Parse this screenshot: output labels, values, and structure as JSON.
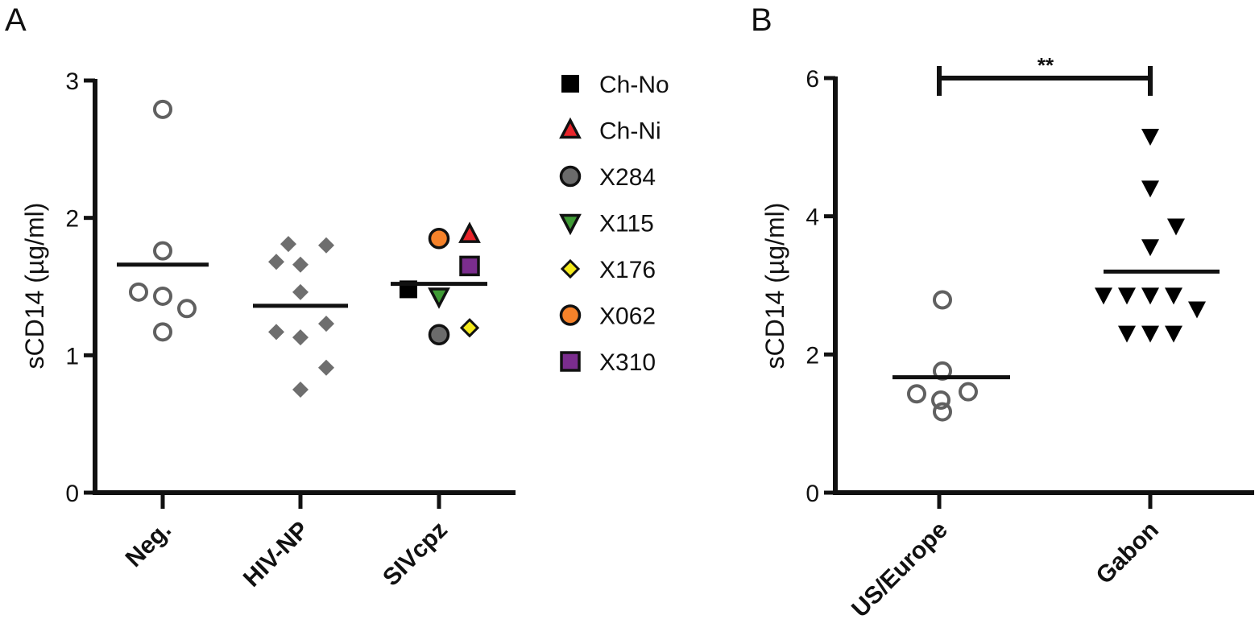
{
  "chart_data": [
    {
      "panel": "A",
      "type": "scatter",
      "title": "",
      "ylabel": "sCD14 (µg/ml)",
      "ylim": [
        0,
        3
      ],
      "yticks": [
        "0",
        "1",
        "2",
        "3"
      ],
      "categories": [
        "Neg.",
        "HIV-NP",
        "SIVcpz"
      ],
      "groups": [
        {
          "category": "Neg.",
          "marker": "open-circle",
          "color": "#606060",
          "mean": 1.66,
          "values": [
            2.79,
            1.76,
            1.46,
            1.43,
            1.34,
            1.17
          ]
        },
        {
          "category": "HIV-NP",
          "marker": "diamond",
          "color": "#6e6e6e",
          "mean": 1.36,
          "values": [
            1.81,
            1.8,
            1.68,
            1.66,
            1.46,
            1.23,
            1.17,
            1.13,
            0.91,
            0.75
          ]
        },
        {
          "category": "SIVcpz",
          "mean": 1.52,
          "points": [
            {
              "legend": "Ch-No",
              "marker": "square",
              "color": "#000000",
              "value": 1.48,
              "offset": -0.45
            },
            {
              "legend": "Ch-Ni",
              "marker": "triangle-up",
              "color": "#e8252b",
              "value": 1.88,
              "offset": 0.45
            },
            {
              "legend": "X284",
              "marker": "circle",
              "color": "#6b6b6b",
              "value": 1.15,
              "offset": 0.0
            },
            {
              "legend": "X115",
              "marker": "triangle-down",
              "color": "#3f9b35",
              "value": 1.43,
              "offset": 0.0
            },
            {
              "legend": "X176",
              "marker": "diamond",
              "color": "#f4ea1c",
              "value": 1.2,
              "offset": 0.45
            },
            {
              "legend": "X062",
              "marker": "circle",
              "color": "#f5822a",
              "value": 1.85,
              "offset": 0.0
            },
            {
              "legend": "X310",
              "marker": "square",
              "color": "#7b2d8e",
              "value": 1.65,
              "offset": 0.45
            }
          ]
        }
      ],
      "legend": [
        "Ch-No",
        "Ch-Ni",
        "X284",
        "X115",
        "X176",
        "X062",
        "X310"
      ]
    },
    {
      "panel": "B",
      "type": "scatter",
      "title": "",
      "ylabel": "sCD14 (µg/ml)",
      "ylim": [
        0,
        6
      ],
      "yticks": [
        "0",
        "2",
        "4",
        "6"
      ],
      "categories": [
        "US/Europe",
        "Gabon"
      ],
      "groups": [
        {
          "category": "US/Europe",
          "marker": "open-circle",
          "color": "#606060",
          "mean": 1.67,
          "values": [
            2.79,
            1.76,
            1.46,
            1.43,
            1.34,
            1.17
          ]
        },
        {
          "category": "Gabon",
          "marker": "triangle-down",
          "color": "#000000",
          "mean": 3.2,
          "values": [
            5.15,
            4.4,
            3.85,
            3.55,
            2.85,
            2.85,
            2.85,
            2.85,
            2.65,
            2.3,
            2.3,
            2.3
          ]
        }
      ],
      "significance": {
        "label": "**",
        "between": [
          "US/Europe",
          "Gabon"
        ],
        "y": 6
      }
    }
  ]
}
